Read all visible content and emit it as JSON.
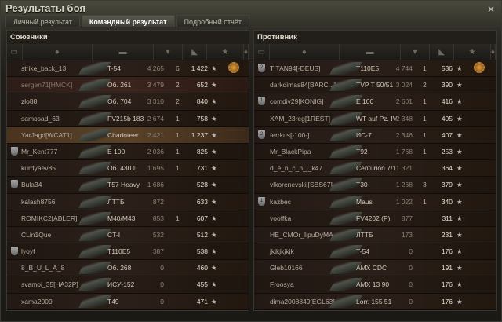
{
  "window": {
    "title": "Результаты боя",
    "close_icon": "close-icon"
  },
  "tabs": [
    {
      "label": "Личный результат"
    },
    {
      "label": "Командный результат",
      "active": true
    },
    {
      "label": "Подробный отчёт"
    }
  ],
  "allies": {
    "title": "Союзники",
    "rows": [
      {
        "name": "strike_back_13",
        "tank": "T-54",
        "damage": "4 265",
        "frags": "6",
        "xp": "1 422",
        "medal": true
      },
      {
        "name": "sergen71[HMCK]",
        "tank": "Об. 261",
        "damage": "3 479",
        "frags": "2",
        "xp": "652",
        "dead": true
      },
      {
        "name": "zlo88",
        "tank": "Об. 704",
        "damage": "3 310",
        "frags": "2",
        "xp": "840"
      },
      {
        "name": "samosad_63",
        "tank": "FV215b 183",
        "damage": "2 674",
        "frags": "1",
        "xp": "758"
      },
      {
        "name": "YarJagd[WCAT1]",
        "tank": "Charioteer",
        "damage": "2 421",
        "frags": "1",
        "xp": "1 237",
        "me": true
      },
      {
        "name": "Mr_Kent777",
        "tank": "E 100",
        "damage": "2 036",
        "frags": "1",
        "xp": "825",
        "clan": ""
      },
      {
        "name": "kurdyaev85",
        "tank": "Об. 430 II",
        "damage": "1 695",
        "frags": "1",
        "xp": "731"
      },
      {
        "name": "Bula34",
        "tank": "T57 Heavy",
        "damage": "1 686",
        "frags": "",
        "xp": "528",
        "clan": ""
      },
      {
        "name": "kalash8756",
        "tank": "ЛТТБ",
        "damage": "872",
        "frags": "",
        "xp": "633"
      },
      {
        "name": "ROMIKC2[ABLER]",
        "tank": "M40/M43",
        "damage": "853",
        "frags": "1",
        "xp": "607"
      },
      {
        "name": "CLin1Que",
        "tank": "CT-I",
        "damage": "532",
        "frags": "",
        "xp": "512"
      },
      {
        "name": "lyoyf",
        "tank": "T110E5",
        "damage": "387",
        "frags": "",
        "xp": "538",
        "clan": ""
      },
      {
        "name": "8_B_U_L_A_8",
        "tank": "Об. 268",
        "damage": "0",
        "frags": "",
        "xp": "460"
      },
      {
        "name": "svamoi_35[HA32P]",
        "tank": "ИСУ-152",
        "damage": "0",
        "frags": "",
        "xp": "455"
      },
      {
        "name": "xama2009",
        "tank": "T49",
        "damage": "0",
        "frags": "",
        "xp": "471"
      }
    ]
  },
  "enemies": {
    "title": "Противник",
    "rows": [
      {
        "name": "TITAN94[-DEUS]",
        "tank": "T110E5",
        "damage": "4 744",
        "frags": "1",
        "xp": "536",
        "medal": true,
        "clan": "2"
      },
      {
        "name": "darkdimas84[BARC...]",
        "tank": "TVP T 50/51",
        "damage": "3 024",
        "frags": "2",
        "xp": "390"
      },
      {
        "name": "comdiv29[KONIG]",
        "tank": "E 100",
        "damage": "2 601",
        "frags": "1",
        "xp": "416",
        "clan": "1"
      },
      {
        "name": "XAM_23reg[1REST]",
        "tank": "WT auf Pz. IV",
        "damage": "2 348",
        "frags": "1",
        "xp": "405"
      },
      {
        "name": "ferrkus[-100-]",
        "tank": "ИС-7",
        "damage": "2 346",
        "frags": "1",
        "xp": "407",
        "clan": "2"
      },
      {
        "name": "Mr_BlackPipa",
        "tank": "T92",
        "damage": "1 768",
        "frags": "1",
        "xp": "253"
      },
      {
        "name": "d_e_n_c_h_i_k47",
        "tank": "Centurion 7/1",
        "damage": "1 321",
        "frags": "",
        "xp": "364"
      },
      {
        "name": "vlkorenevskij[SBS67]",
        "tank": "T30",
        "damage": "1 268",
        "frags": "3",
        "xp": "379"
      },
      {
        "name": "kazbec",
        "tank": "Maus",
        "damage": "1 022",
        "frags": "1",
        "xp": "340",
        "clan": "1"
      },
      {
        "name": "vooffka",
        "tank": "FV4202 (P)",
        "damage": "877",
        "frags": "",
        "xp": "311"
      },
      {
        "name": "HE_CMOr_IlpuDyMA...",
        "tank": "ЛТТБ",
        "damage": "173",
        "frags": "",
        "xp": "231"
      },
      {
        "name": "jkjkjkjkjk",
        "tank": "T-54",
        "damage": "0",
        "frags": "",
        "xp": "176"
      },
      {
        "name": "Gleb10166",
        "tank": "AMX CDC",
        "damage": "0",
        "frags": "",
        "xp": "191"
      },
      {
        "name": "Froosya",
        "tank": "AMX 13 90",
        "damage": "0",
        "frags": "",
        "xp": "176"
      },
      {
        "name": "dima2008849[EGL63]",
        "tank": "Lorr. 155 51",
        "damage": "0",
        "frags": "",
        "xp": "176"
      }
    ]
  },
  "columns": [
    "platoon-icon",
    "player-icon",
    "tank-icon",
    "damage-icon",
    "frags-icon",
    "xp-star-icon",
    "medal-icon"
  ],
  "star": "★"
}
